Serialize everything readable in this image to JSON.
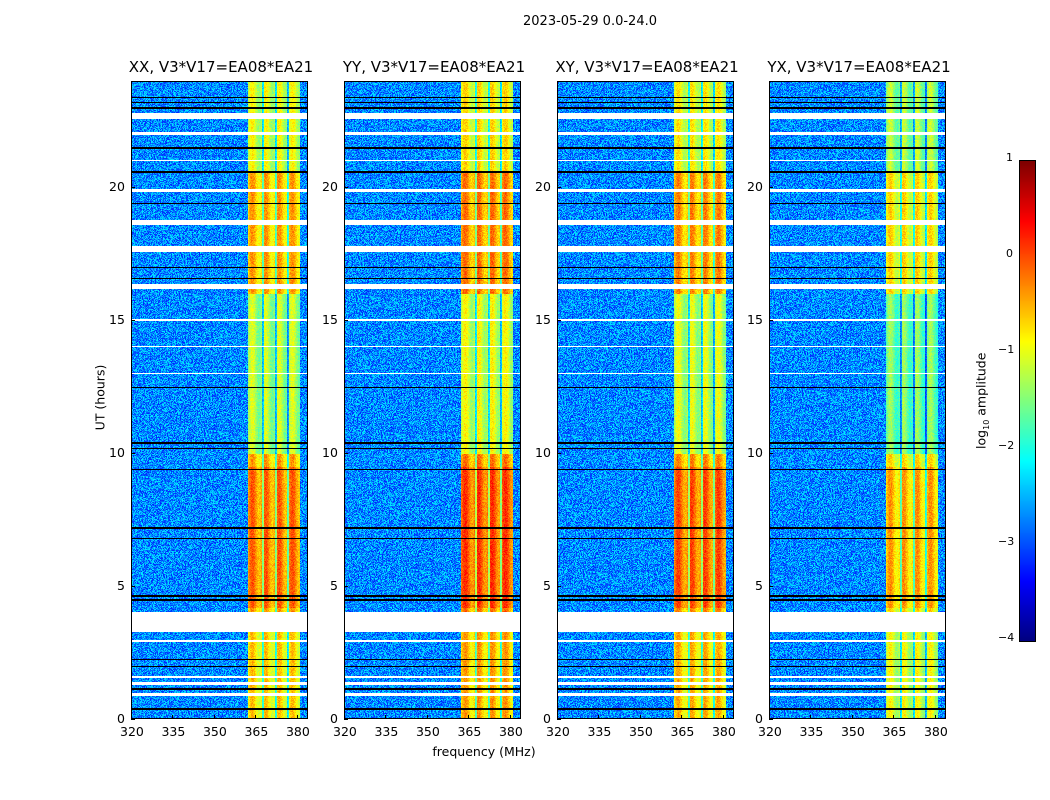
{
  "suptitle": "2023-05-29 0.0-24.0",
  "chart_data": {
    "type": "heatmap",
    "title": "2023-05-29 0.0-24.0",
    "xlabel": "frequency (MHz)",
    "ylabel": "UT (hours)",
    "xlim": [
      320,
      384
    ],
    "ylim": [
      0,
      24
    ],
    "xticks": [
      320,
      335,
      350,
      365,
      380
    ],
    "yticks": [
      0,
      5,
      10,
      15,
      20
    ],
    "colormap": "jet",
    "colorbar": {
      "label_main": "log",
      "label_sub": "10",
      "label_rest": " amplitude",
      "range": [
        -4,
        1
      ],
      "ticks": [
        1,
        0,
        -1,
        -2,
        -3,
        -4
      ]
    },
    "panels": [
      {
        "title": "XX, V3*V17=EA08*EA21",
        "band_level": -0.6
      },
      {
        "title": "YY, V3*V17=EA08*EA21",
        "band_level": -0.4
      },
      {
        "title": "XY, V3*V17=EA08*EA21",
        "band_level": -0.5
      },
      {
        "title": "YX, V3*V17=EA08*EA21",
        "band_level": -0.9
      }
    ],
    "background_level": -2.7,
    "rfi_band_mhz": [
      362,
      381
    ],
    "rfi_gaps_mhz": [
      367.5,
      372.3,
      376.5
    ],
    "flagged_hours": [
      [
        0.9,
        1.0
      ],
      [
        1.3,
        1.4
      ],
      [
        1.55,
        1.65
      ],
      [
        3.3,
        4.05
      ],
      [
        2.9,
        3.0
      ],
      [
        16.2,
        16.4
      ],
      [
        17.6,
        17.8
      ],
      [
        18.6,
        18.8
      ],
      [
        19.85,
        19.95
      ],
      [
        21.0,
        21.05
      ],
      [
        22.0,
        22.1
      ],
      [
        22.6,
        22.8
      ],
      [
        13.0,
        13.05
      ],
      [
        14.0,
        14.05
      ],
      [
        15.0,
        15.05
      ]
    ],
    "black_lines_hours": [
      0.4,
      1.15,
      2.0,
      2.25,
      4.5,
      4.65,
      6.8,
      7.2,
      9.4,
      10.2,
      10.4,
      12.5,
      16.6,
      17.0,
      19.4,
      20.6,
      21.5,
      23.0,
      23.2,
      23.4
    ]
  },
  "axis": {
    "xlabel": "frequency (MHz)",
    "ylabel": "UT (hours)"
  }
}
